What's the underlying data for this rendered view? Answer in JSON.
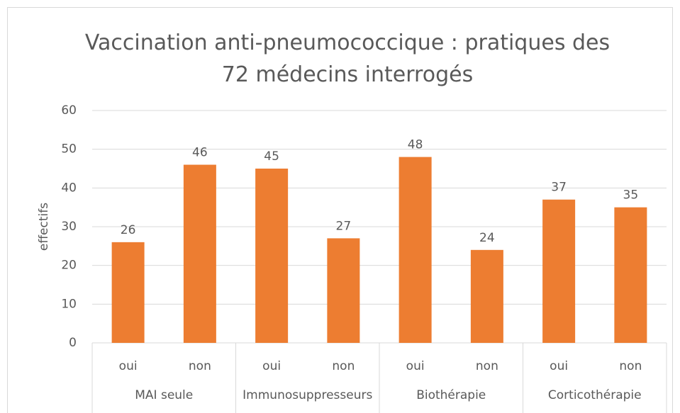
{
  "chart_data": {
    "type": "bar",
    "title": "Vaccination anti-pneumococcique : pratiques des 72 médecins interrogés",
    "y_label": "effectifs",
    "categories": [
      "oui",
      "non",
      "oui",
      "non",
      "oui",
      "non",
      "oui",
      "non"
    ],
    "category_groups": [
      "MAI seule",
      "Immunosuppresseurs",
      "Biothérapie",
      "Corticothérapie"
    ],
    "values": [
      26,
      46,
      45,
      27,
      48,
      24,
      37,
      35
    ],
    "color": "#ed7d31",
    "ylim": [
      0,
      60
    ],
    "yticks": [
      0,
      10,
      20,
      30,
      40,
      50,
      60
    ],
    "grid": true
  }
}
